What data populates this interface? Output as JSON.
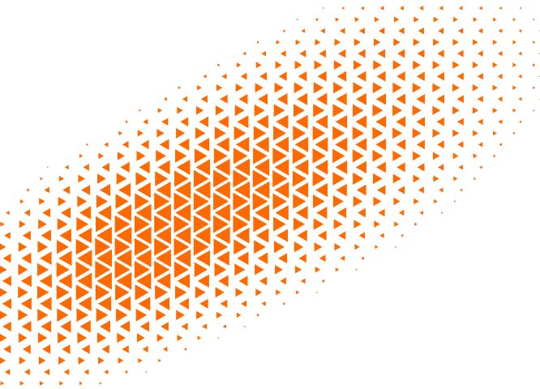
{
  "graphic": {
    "pattern": "triangle-halftone",
    "colors": {
      "triangle": "#FF6A00",
      "background": "#FFFFFF"
    }
  }
}
